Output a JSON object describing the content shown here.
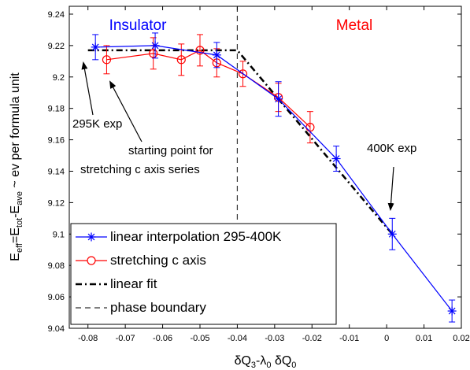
{
  "chart_data": {
    "type": "line",
    "title": "",
    "xlabel": {
      "main": "δQ",
      "sub1": "3",
      "mid": "-λ",
      "sub2": "0",
      "tail": " δQ",
      "sub3": "0"
    },
    "ylabel": {
      "p1": "E",
      "s1": "eff",
      "p2": "=E",
      "s2": "tot",
      "p3": "-E",
      "s3": "ave",
      "p4": " ~ ev per formula unit"
    },
    "xlim": [
      -0.085,
      0.02
    ],
    "ylim": [
      9.04,
      9.245
    ],
    "xticks": [
      -0.08,
      -0.07,
      -0.06,
      -0.05,
      -0.04,
      -0.03,
      -0.02,
      -0.01,
      0,
      0.01,
      0.02
    ],
    "xtick_labels": [
      "-0.08",
      "-0.07",
      "-0.06",
      "-0.05",
      "-0.04",
      "-0.03",
      "-0.02",
      "-0.01",
      "0",
      "0.01",
      "0.02"
    ],
    "yticks": [
      9.04,
      9.06,
      9.08,
      9.1,
      9.12,
      9.14,
      9.16,
      9.18,
      9.2,
      9.22,
      9.24
    ],
    "ytick_labels": [
      "9.04",
      "9.06",
      "9.08",
      "9.1",
      "9.12",
      "9.14",
      "9.16",
      "9.18",
      "9.2",
      "9.22",
      "9.24"
    ],
    "grid": false,
    "legend_position": "bottom-left",
    "series": [
      {
        "name": "linear interpolation 295-400K",
        "color": "#0000ff",
        "marker": "asterisk",
        "linestyle": "solid",
        "x": [
          -0.078,
          -0.062,
          -0.0455,
          -0.029,
          -0.0135,
          0.0015,
          0.0175
        ],
        "y": [
          9.219,
          9.22,
          9.214,
          9.186,
          9.148,
          9.1,
          9.051
        ],
        "err": [
          0.008,
          0.008,
          0.008,
          0.011,
          0.008,
          0.01,
          0.007
        ]
      },
      {
        "name": "stretching c axis",
        "color": "#ff0000",
        "marker": "circle",
        "linestyle": "solid",
        "x": [
          -0.075,
          -0.0625,
          -0.055,
          -0.05,
          -0.0455,
          -0.0385,
          -0.029,
          -0.0205
        ],
        "y": [
          9.211,
          9.215,
          9.211,
          9.217,
          9.209,
          9.202,
          9.187,
          9.168
        ],
        "err": [
          0.009,
          0.01,
          0.01,
          0.01,
          0.009,
          0.008,
          0.009,
          0.01
        ]
      },
      {
        "name": "linear fit",
        "color": "#000000",
        "marker": "none",
        "linestyle": "dashdot",
        "x": [
          -0.08,
          -0.04,
          0.0015
        ],
        "y": [
          9.217,
          9.217,
          9.1
        ]
      }
    ],
    "phase_boundary": {
      "name": "phase boundary",
      "x": -0.04,
      "color": "#333333",
      "linestyle": "dashed"
    },
    "annotations": {
      "insulator": {
        "text": "Insulator",
        "color": "#0000ff"
      },
      "metal": {
        "text": "Metal",
        "color": "#ff0000"
      },
      "exp295": {
        "text": "295K exp"
      },
      "start_line1": {
        "text": "starting point for"
      },
      "start_line2": {
        "text": "stretching c axis series"
      },
      "exp400": {
        "text": "400K exp"
      }
    }
  }
}
